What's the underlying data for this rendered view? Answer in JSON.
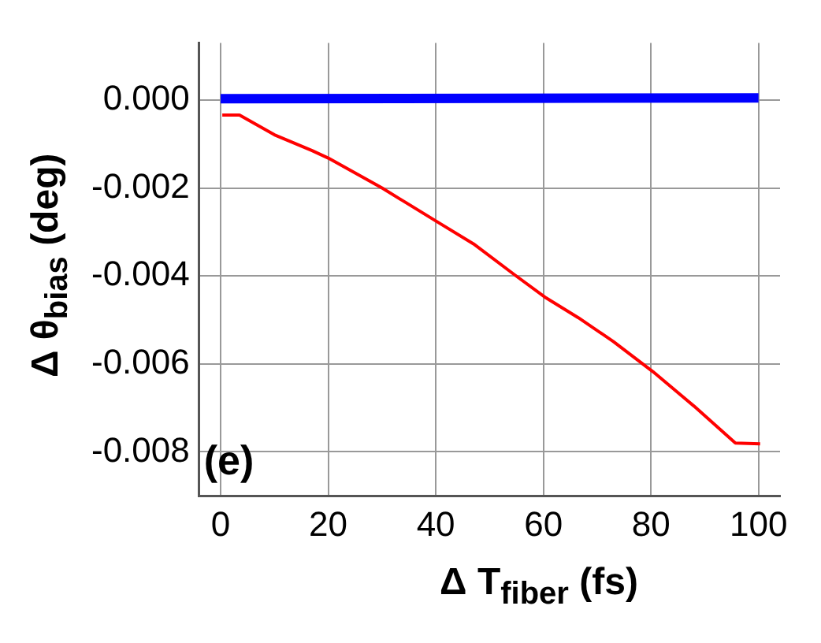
{
  "chart_data": {
    "type": "line",
    "xlabel": "Δ T$_{fiber}$ (fs)",
    "ylabel": "Δ θ$_{bias}$ (deg)",
    "annotations": [
      "(e)"
    ],
    "xlim": [
      -4,
      104
    ],
    "ylim": [
      -0.009,
      0.0013
    ],
    "xticks": [
      0,
      20,
      40,
      60,
      80,
      100
    ],
    "yticks": [
      {
        "value": 0,
        "label": "0.000"
      },
      {
        "value": -0.002,
        "label": "-0.002"
      },
      {
        "value": -0.004,
        "label": "-0.004"
      },
      {
        "value": -0.006,
        "label": "-0.006"
      },
      {
        "value": -0.008,
        "label": "-0.008"
      }
    ],
    "grid": true,
    "legend": false,
    "marker": "none",
    "line_style": "solid",
    "series": [
      {
        "color": "#0000ff",
        "x": [
          0,
          100
        ],
        "values": [
          3e-05,
          5e-05
        ]
      },
      {
        "color": "#ff0000",
        "x": [
          0.3,
          3.5,
          10,
          17,
          20,
          30,
          40,
          47,
          54.6,
          60.5,
          66.5,
          73,
          80.4,
          88,
          95.7,
          100.3
        ],
        "values": [
          -0.00034,
          -0.00034,
          -0.00079,
          -0.00115,
          -0.00132,
          -0.002,
          -0.00275,
          -0.00327,
          -0.00397,
          -0.0045,
          -0.00495,
          -0.00549,
          -0.00618,
          -0.00696,
          -0.0078,
          -0.00782
        ]
      }
    ]
  }
}
